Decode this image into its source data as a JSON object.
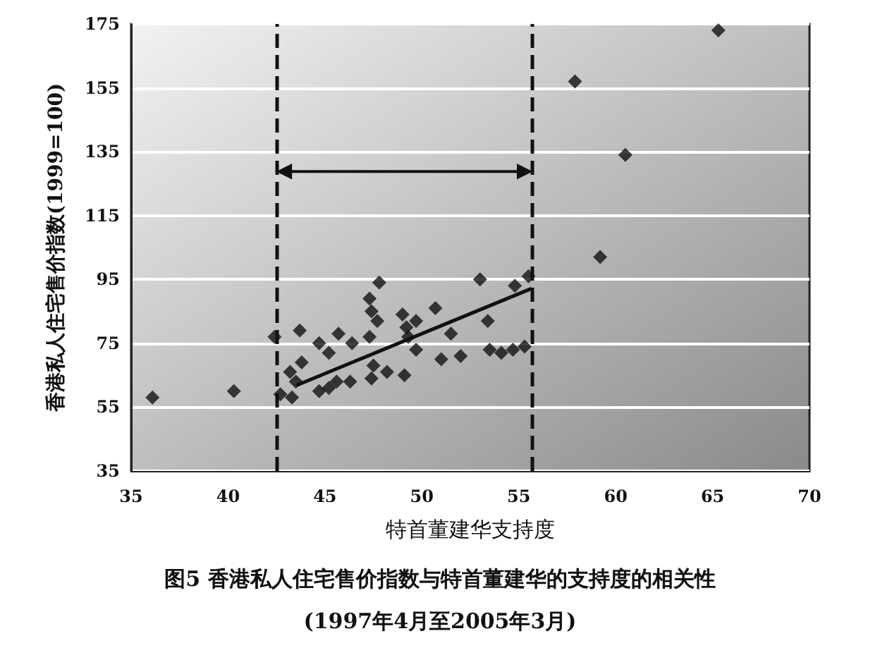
{
  "chart_data": {
    "type": "scatter",
    "title": "图5 香港私人住宅售价指数与特首董建华的支持度的相关性",
    "subtitle": "(1997年4月至2005年3月)",
    "xlabel": "特首董建华支持度",
    "ylabel": "香港私人住宅售价指数(1999=100)",
    "xlim": [
      35,
      70
    ],
    "xticks": [
      35,
      40,
      45,
      50,
      55,
      60,
      65,
      70
    ],
    "ylim": [
      35,
      175
    ],
    "yticks": [
      35,
      55,
      75,
      95,
      115,
      135,
      155,
      175
    ],
    "grid": "y",
    "marker": "diamond",
    "series": [
      {
        "color": "#111111",
        "x": [
          36.1,
          40.3,
          42.4,
          43.7,
          47.8,
          47.3,
          47.4,
          47.7,
          47.3,
          45.7,
          46.4,
          44.7,
          45.2,
          43.8,
          43.2,
          43.5,
          42.7,
          43.3,
          44.7,
          45.2,
          45.6,
          46.3,
          47.5,
          47.4,
          48.2,
          49.1,
          49.0,
          49.7,
          49.2,
          49.3,
          49.7,
          50.7,
          51.5,
          51.0,
          52.0,
          53.0,
          53.4,
          53.5,
          54.1,
          54.7,
          55.3,
          54.8,
          55.5,
          57.9,
          60.5,
          59.2,
          65.3
        ],
        "values": [
          58,
          60,
          77,
          79,
          94,
          89,
          85,
          82,
          77,
          78,
          75,
          75,
          72,
          69,
          66,
          63,
          59,
          58,
          60,
          61,
          63,
          63,
          68,
          64,
          66,
          65,
          84,
          82,
          80,
          77,
          73,
          86,
          78,
          70,
          71,
          95,
          82,
          73,
          72,
          73,
          74,
          93,
          96,
          157,
          134,
          102,
          173
        ]
      },
      {
        "type": "line",
        "color": "#111111",
        "marker": "none",
        "x": [
          43.6,
          55.6
        ],
        "values": [
          62,
          92
        ]
      }
    ],
    "ref_lines": [
      {
        "axis": "x",
        "value": 42.5,
        "color": "#111111",
        "line_style": "dashed"
      },
      {
        "axis": "x",
        "value": 55.7,
        "color": "#111111",
        "line_style": "dashed"
      }
    ]
  }
}
